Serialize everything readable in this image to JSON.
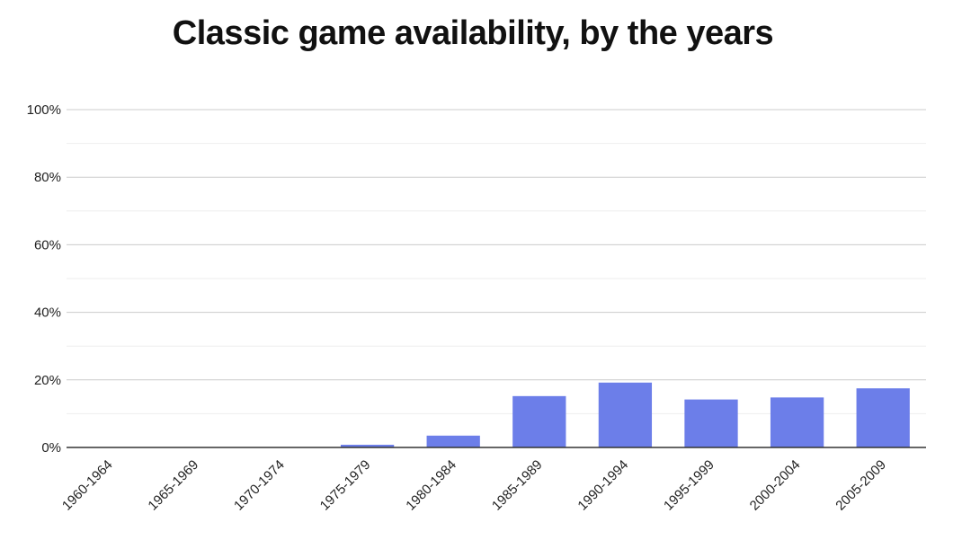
{
  "chart_data": {
    "type": "bar",
    "title": "Classic game availability, by the years",
    "xlabel": "",
    "ylabel": "",
    "categories": [
      "1960-1964",
      "1965-1969",
      "1970-1974",
      "1975-1979",
      "1980-1984",
      "1985-1989",
      "1990-1994",
      "1995-1999",
      "2000-2004",
      "2005-2009"
    ],
    "values": [
      0,
      0,
      0,
      0.8,
      3.5,
      15.2,
      19.2,
      14.2,
      14.8,
      17.5
    ],
    "ylim": [
      0,
      100
    ],
    "yticks": [
      0,
      20,
      40,
      60,
      80,
      100
    ],
    "ytick_labels": [
      "0%",
      "20%",
      "40%",
      "60%",
      "80%",
      "100%"
    ],
    "grid": true,
    "legend": "none",
    "colors": {
      "bar": "#6c7ee9",
      "gridline": "#cccccc",
      "minor_gridline": "#eeeeee",
      "axis": "#333333"
    }
  }
}
